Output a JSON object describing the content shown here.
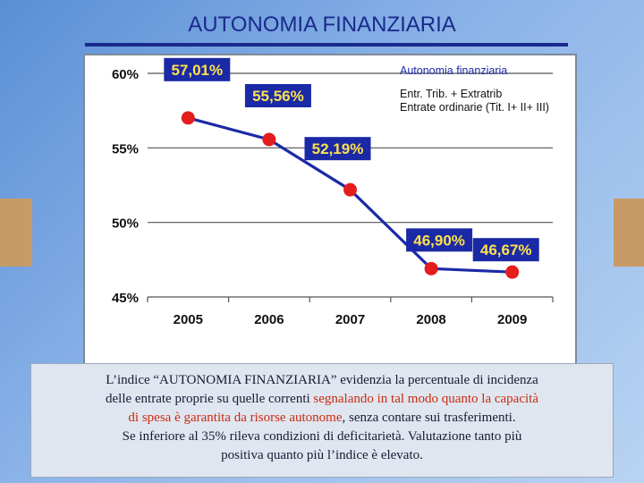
{
  "slide": {
    "title": "AUTONOMIA FINANZIARIA"
  },
  "colors": {
    "line": "#1a2aa6",
    "marker": "#e51c1c",
    "label_bg": "#1a2aa6",
    "label_text": "#ffe14d",
    "title": "#1a2a8c",
    "highlight_text": "#cc2a10",
    "band": "#c89a68"
  },
  "chart_data": {
    "type": "line",
    "title": "Autonomia finanziaria",
    "subtitle_lines": [
      "Entr. Trib. + Extratrib",
      "Entrate ordinarie (Tit. I+ II+ III)"
    ],
    "categories": [
      "2005",
      "2006",
      "2007",
      "2008",
      "2009"
    ],
    "series": [
      {
        "values": [
          57.01,
          55.56,
          52.19,
          46.9,
          46.67
        ]
      }
    ],
    "data_labels": [
      "57,01%",
      "55,56%",
      "52,19%",
      "46,90%",
      "46,67%"
    ],
    "y_ticks": [
      45,
      50,
      55,
      60
    ],
    "y_tick_labels": [
      "45%",
      "50%",
      "55%",
      "60%"
    ],
    "ylim": [
      45,
      60
    ],
    "grid": true
  },
  "caption": {
    "line1": "L’indice “AUTONOMIA FINANZIARIA” evidenzia la percentuale di incidenza",
    "line2_plain": "delle entrate proprie su quelle correnti ",
    "line2_red": "segnalando in tal modo quanto la capacità",
    "line3_red": "di spesa è garantita da risorse autonome",
    "line3_plain": ", senza contare sui trasferimenti.",
    "line4": "Se inferiore al 35% rileva condizioni di deficitarietà. Valutazione tanto più",
    "line5": "positiva quanto più l’indice è elevato."
  }
}
